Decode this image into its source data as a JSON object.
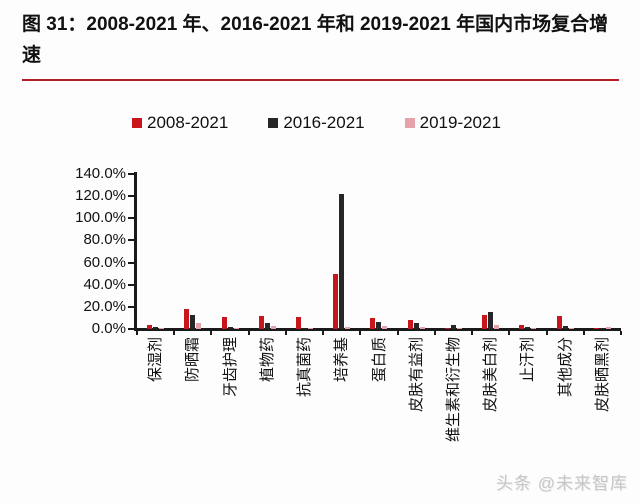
{
  "figure": {
    "title": "图 31：2008-2021 年、2016-2021 年和 2019-2021 年国内市场复合增速",
    "accent_rule_color": "#b42025",
    "watermark": "头条 @未来智库"
  },
  "chart_data": {
    "type": "bar",
    "title": "图 31：2008-2021 年、2016-2021 年和 2019-2021 年国内市场复合增速",
    "categories": [
      "保湿剂",
      "防晒霜",
      "牙齿护理",
      "植物药",
      "抗真菌药",
      "培养基",
      "蛋白质",
      "皮肤有益剂",
      "维生素和衍生物",
      "皮肤美白剂",
      "止汗剂",
      "其他成分",
      "皮肤晒黑剂"
    ],
    "series": [
      {
        "name": "2008-2021",
        "color": "#c9161d",
        "values": [
          4,
          18,
          11,
          11.5,
          11,
          50,
          9.5,
          8,
          0.5,
          12.5,
          4,
          11.5,
          0.5
        ]
      },
      {
        "name": "2016-2021",
        "color": "#262626",
        "values": [
          2,
          12.5,
          2,
          5.5,
          1,
          122,
          6.5,
          5,
          3.5,
          15.5,
          1.5,
          2.5,
          0.5
        ]
      },
      {
        "name": "2019-2021",
        "color": "#e5a2aa",
        "values": [
          0.5,
          5.5,
          0.5,
          3,
          0.5,
          2,
          3,
          1.5,
          1,
          4,
          0.5,
          0.5,
          1.5
        ]
      }
    ],
    "xlabel": "",
    "ylabel": "",
    "ylim": [
      0,
      140
    ],
    "ytick_step": 20,
    "ytick_labels": [
      "0.0%",
      "20.0%",
      "40.0%",
      "60.0%",
      "80.0%",
      "100.0%",
      "120.0%",
      "140.0%"
    ],
    "unit": "percent",
    "grid": false,
    "legend_position": "top",
    "bar_orientation": "vertical",
    "xlabel_rotation_deg": 90
  }
}
